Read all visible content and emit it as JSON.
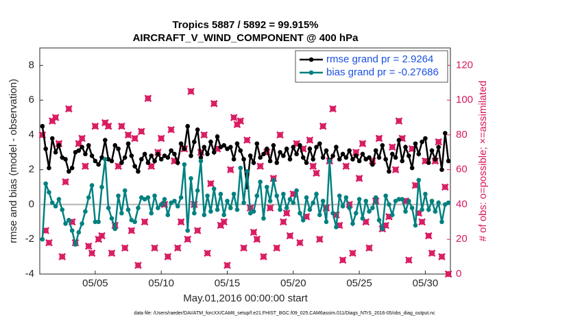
{
  "chart_data": {
    "type": "line",
    "title": [
      "Tropics 5887 / 5892 = 99.915%",
      "AIRCRAFT_V_WIND_COMPONENT @ 400 hPa"
    ],
    "xlabel": "May.01,2016 00:00:00 start",
    "ylabel": "rmse and bias (model - observation)",
    "y2label": "# of obs: o=possible; ×=assimilated",
    "footnote": "data file: /Users/raeder/DAI/ATM_forcXX/CAM6_setup/f.e21.FHIST_BGC.f09_025.CAM6assim.011/Diags_NTrS_2016-05/obs_diag_output.nc",
    "xlim": [
      0.8,
      31.9
    ],
    "xticks": [
      {
        "value": 5,
        "label": "05/05"
      },
      {
        "value": 10,
        "label": "05/10"
      },
      {
        "value": 15,
        "label": "05/15"
      },
      {
        "value": 20,
        "label": "05/20"
      },
      {
        "value": 25,
        "label": "05/25"
      },
      {
        "value": 30,
        "label": "05/30"
      }
    ],
    "ylim": [
      -4,
      9
    ],
    "yticks": [
      -4,
      -2,
      0,
      2,
      4,
      6,
      8
    ],
    "y2lim": [
      0,
      130
    ],
    "y2ticks": [
      0,
      20,
      40,
      60,
      80,
      100,
      120
    ],
    "legend": "upper right",
    "x": [
      1,
      1.25,
      1.5,
      1.75,
      2,
      2.25,
      2.5,
      2.75,
      3,
      3.25,
      3.5,
      3.75,
      4,
      4.25,
      4.5,
      4.75,
      5,
      5.25,
      5.5,
      5.75,
      6,
      6.25,
      6.5,
      6.75,
      7,
      7.25,
      7.5,
      7.75,
      8,
      8.25,
      8.5,
      8.75,
      9,
      9.25,
      9.5,
      9.75,
      10,
      10.25,
      10.5,
      10.75,
      11,
      11.25,
      11.5,
      11.75,
      12,
      12.25,
      12.5,
      12.75,
      13,
      13.25,
      13.5,
      13.75,
      14,
      14.25,
      14.5,
      14.75,
      15,
      15.25,
      15.5,
      15.75,
      16,
      16.25,
      16.5,
      16.75,
      17,
      17.25,
      17.5,
      17.75,
      18,
      18.25,
      18.5,
      18.75,
      19,
      19.25,
      19.5,
      19.75,
      20,
      20.25,
      20.5,
      20.75,
      21,
      21.25,
      21.5,
      21.75,
      22,
      22.25,
      22.5,
      22.75,
      23,
      23.25,
      23.5,
      23.75,
      24,
      24.25,
      24.5,
      24.75,
      25,
      25.25,
      25.5,
      25.75,
      26,
      26.25,
      26.5,
      26.75,
      27,
      27.25,
      27.5,
      27.75,
      28,
      28.25,
      28.5,
      28.75,
      29,
      29.25,
      29.5,
      29.75,
      30,
      30.25,
      30.5,
      30.75,
      31,
      31.25,
      31.5,
      31.75
    ],
    "series": [
      {
        "name": "rmse grand pr = 2.9264",
        "color": "#000000",
        "values": [
          4.5,
          3.2,
          2.1,
          3.8,
          3.0,
          3.4,
          2.7,
          2.6,
          1.9,
          2.1,
          3.0,
          3.1,
          3.3,
          2.9,
          3.4,
          2.8,
          2.5,
          2.3,
          2.7,
          3.7,
          2.6,
          2.5,
          3.4,
          3.2,
          2.4,
          2.7,
          3.5,
          2.8,
          2.2,
          1.9,
          2.6,
          2.9,
          2.4,
          2.8,
          2.5,
          2.9,
          2.6,
          2.8,
          2.7,
          3.1,
          2.9,
          2.4,
          3.5,
          3.2,
          4.5,
          2.8,
          3.6,
          4.3,
          2.7,
          3.3,
          2.9,
          3.6,
          3.0,
          3.9,
          3.3,
          3.4,
          3.2,
          3.3,
          2.6,
          3.5,
          3.1,
          2.6,
          1.0,
          2.8,
          2.4,
          3.5,
          2.7,
          2.9,
          3.2,
          2.5,
          3.4,
          2.4,
          3.0,
          2.8,
          3.2,
          2.6,
          3.3,
          2.9,
          3.4,
          2.7,
          2.4,
          3.2,
          2.6,
          3.3,
          3.5,
          2.7,
          3.1,
          2.5,
          2.8,
          3.3,
          2.6,
          2.9,
          2.7,
          3.1,
          2.6,
          2.8,
          2.5,
          2.9,
          2.6,
          2.7,
          2.3,
          3.1,
          2.7,
          3.4,
          2.6,
          1.9,
          2.9,
          2.7,
          3.7,
          2.5,
          3.3,
          2.8,
          2.1,
          3.5,
          2.9,
          3.6,
          3.8,
          2.4,
          3.1,
          2.6,
          3.3,
          2.0,
          4.1,
          2.5
        ]
      },
      {
        "name": "bias grand pr = -0.27686",
        "color": "#008080",
        "values": [
          -2.0,
          1.2,
          0.7,
          0.1,
          -0.1,
          0.3,
          -0.3,
          -1.1,
          -0.9,
          -1.5,
          -2.3,
          -1.6,
          -1.1,
          -0.4,
          0.4,
          1.1,
          -1.0,
          -1.0,
          1.0,
          2.6,
          -0.2,
          -0.8,
          -1.4,
          0.5,
          -0.5,
          0.8,
          -0.3,
          -0.9,
          -1.0,
          -0.2,
          0.4,
          0.3,
          0.4,
          -0.5,
          0.5,
          -0.2,
          0.0,
          0.3,
          -0.6,
          0.1,
          0.2,
          -0.1,
          0.4,
          2.3,
          -1.5,
          1.5,
          -0.5,
          0.8,
          2.5,
          -0.6,
          0.5,
          -0.4,
          0.9,
          -0.3,
          0.6,
          -0.6,
          0.2,
          -0.2,
          0.6,
          -0.3,
          2.1,
          0.1,
          1.9,
          -0.5,
          -0.4,
          0.5,
          1.3,
          -0.8,
          1.0,
          0.2,
          1.4,
          0.5,
          -0.3,
          0.6,
          -0.2,
          0.3,
          0.1,
          0.8,
          -0.5,
          -0.9,
          0.4,
          -0.3,
          0.1,
          0.6,
          -0.6,
          0.2,
          -1.0,
          2.5,
          -0.5,
          -1.3,
          0.5,
          -0.1,
          0.4,
          -0.2,
          -1.1,
          -0.5,
          0.3,
          -0.8,
          0.2,
          -0.4,
          -0.2,
          0.4,
          -0.9,
          -1.4,
          0.5,
          0.0,
          -0.6,
          0.2,
          0.3,
          0.3,
          -0.4,
          0.2,
          -0.2,
          -1.2,
          1.4,
          -0.3,
          0.6,
          -0.3,
          0.2,
          -0.4,
          0.1,
          -1.0,
          0.0,
          0.1
        ]
      },
      {
        "axis": "y2",
        "color": "#d8175f",
        "marker": "x",
        "values": [
          80,
          25,
          18,
          88,
          90,
          75,
          10,
          53,
          95,
          30,
          18,
          75,
          78,
          62,
          16,
          12,
          85,
          20,
          22,
          87,
          85,
          12,
          28,
          62,
          85,
          15,
          80,
          25,
          78,
          5,
          82,
          30,
          101,
          62,
          15,
          70,
          78,
          40,
          10,
          83,
          65,
          15,
          30,
          72,
          20,
          105,
          40,
          25,
          70,
          80,
          12,
          52,
          98,
          72,
          28,
          30,
          5,
          60,
          90,
          86,
          88,
          15,
          77,
          38,
          24,
          20,
          62,
          10,
          70,
          38,
          55,
          15,
          80,
          30,
          35,
          22,
          46,
          75,
          18,
          72,
          33,
          77,
          62,
          58,
          20,
          85,
          38,
          65,
          95,
          34,
          28,
          8,
          62,
          40,
          12,
          70,
          55,
          75,
          30,
          15,
          65,
          42,
          78,
          26,
          28,
          33,
          73,
          60,
          88,
          78,
          42,
          8,
          72,
          51,
          35,
          30,
          65,
          22,
          12,
          65,
          76,
          10,
          50,
          0
        ]
      }
    ]
  }
}
